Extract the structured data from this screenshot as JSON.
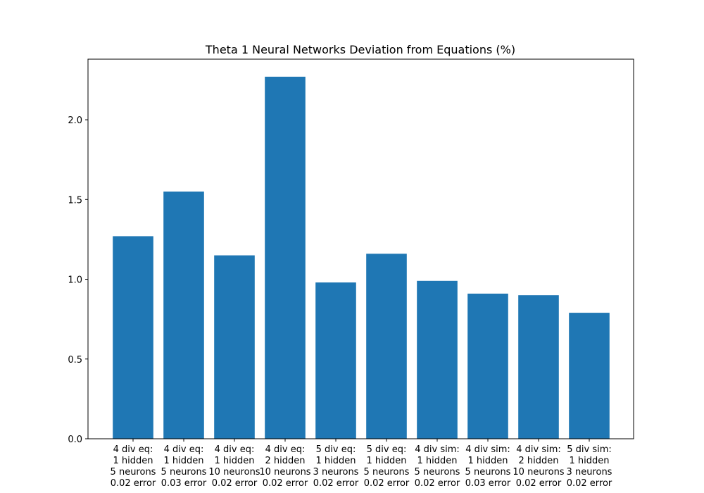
{
  "chart_data": {
    "type": "bar",
    "title": "Theta 1 Neural Networks Deviation from Equations (%)",
    "xlabel": "",
    "ylabel": "",
    "categories": [
      [
        "4 div eq:",
        "1 hidden",
        "5 neurons",
        "0.02 error"
      ],
      [
        "4 div eq:",
        "1 hidden",
        "5 neurons",
        "0.03 error"
      ],
      [
        "4 div eq:",
        "1 hidden",
        "10 neurons",
        "0.02 error"
      ],
      [
        "4 div eq:",
        "2 hidden",
        "10 neurons",
        "0.02 error"
      ],
      [
        "5 div eq:",
        "1 hidden",
        "3 neurons",
        "0.02 error"
      ],
      [
        "5 div eq:",
        "1 hidden",
        "5 neurons",
        "0.02 error"
      ],
      [
        "4 div sim:",
        "1 hidden",
        "5 neurons",
        "0.02 error"
      ],
      [
        "4 div sim:",
        "1 hidden",
        "5 neurons",
        "0.03 error"
      ],
      [
        "4 div sim:",
        "2 hidden",
        "10 neurons",
        "0.02 error"
      ],
      [
        "5 div sim:",
        "1 hidden",
        "3 neurons",
        "0.02 error"
      ]
    ],
    "values": [
      1.27,
      1.55,
      1.15,
      2.27,
      0.98,
      1.16,
      0.99,
      0.91,
      0.9,
      0.79
    ],
    "ylim": [
      0,
      2.38
    ],
    "yticks": [
      "0.0",
      "0.5",
      "1.0",
      "1.5",
      "2.0"
    ],
    "grid": false,
    "bar_color": "#1f77b4"
  }
}
